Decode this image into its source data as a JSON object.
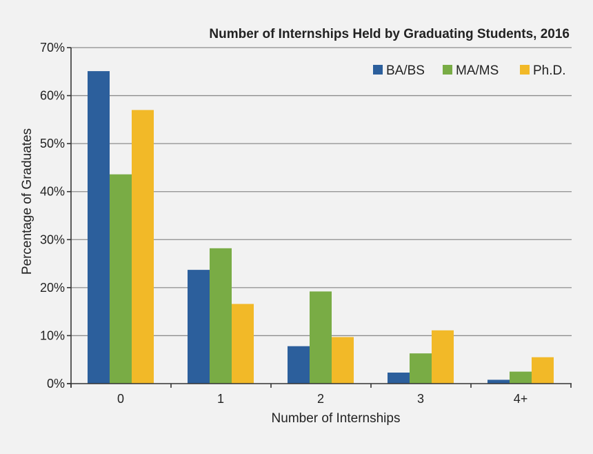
{
  "chart_data": {
    "type": "bar",
    "title": "Number of Internships Held by Graduating Students, 2016",
    "xlabel": "Number of Internships",
    "ylabel": "Percentage of Graduates",
    "categories": [
      "0",
      "1",
      "2",
      "3",
      "4+"
    ],
    "ylim": [
      0,
      70
    ],
    "yticks": [
      0,
      10,
      20,
      30,
      40,
      50,
      60,
      70
    ],
    "ytick_labels": [
      "0%",
      "10%",
      "20%",
      "30%",
      "40%",
      "50%",
      "60%",
      "70%"
    ],
    "grid": true,
    "legend_position": "top-right",
    "series": [
      {
        "name": "BA/BS",
        "color": "#2c5f9c",
        "values": [
          65.1,
          23.7,
          7.8,
          2.3,
          0.8
        ]
      },
      {
        "name": "MA/MS",
        "color": "#79ac45",
        "values": [
          43.6,
          28.2,
          19.2,
          6.3,
          2.5
        ]
      },
      {
        "name": "Ph.D.",
        "color": "#f2b928",
        "values": [
          57.0,
          16.6,
          9.7,
          11.1,
          5.5
        ]
      }
    ]
  }
}
